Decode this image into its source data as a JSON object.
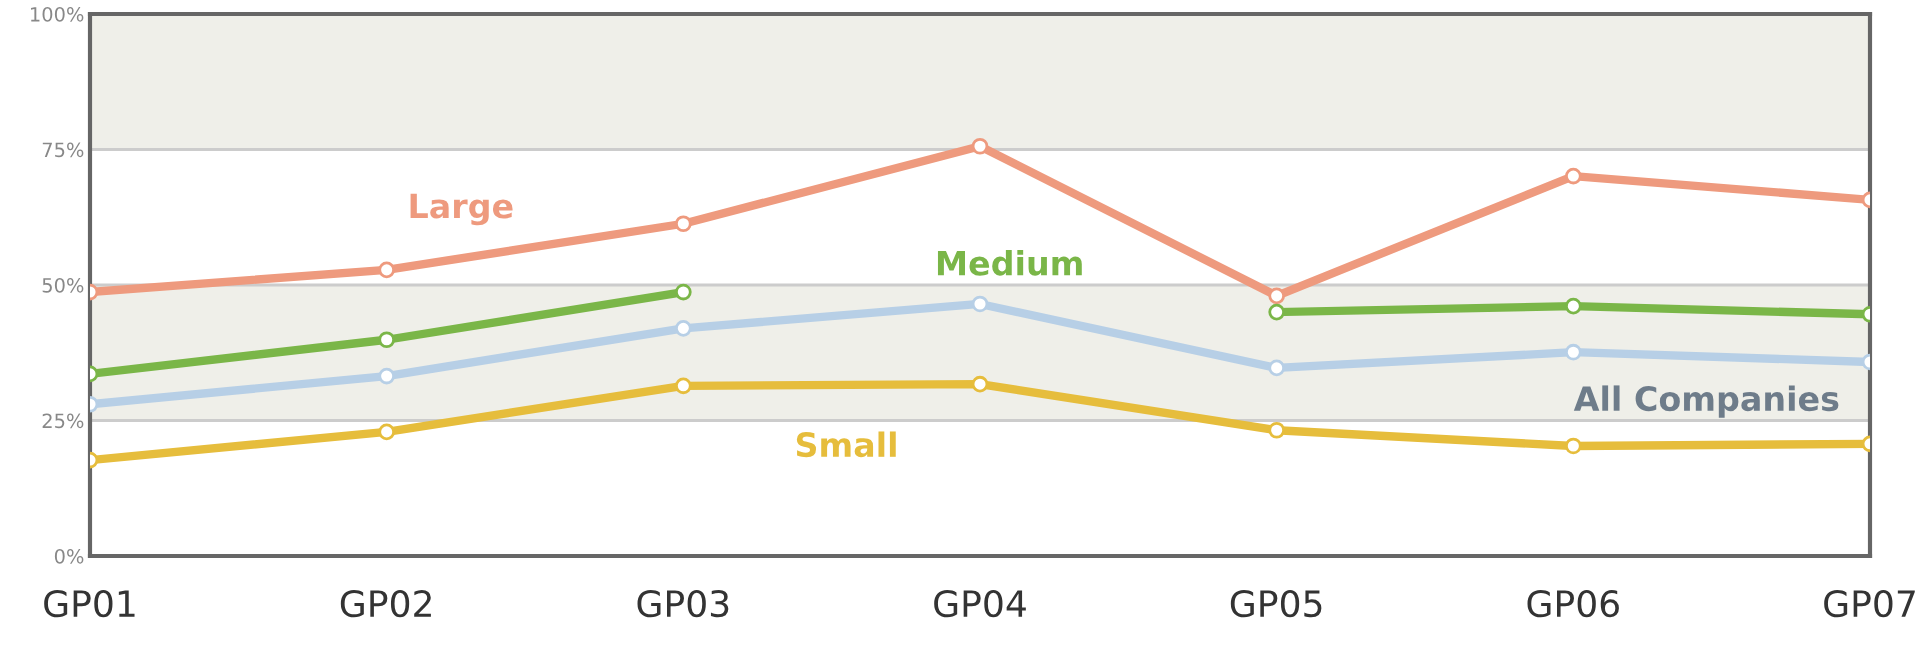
{
  "chart_data": {
    "type": "line",
    "categories": [
      "GP01",
      "GP02",
      "GP03",
      "GP04",
      "GP05",
      "GP06",
      "GP07"
    ],
    "series": [
      {
        "name": "Large",
        "color": "#ee9a7e",
        "values": [
          48.7,
          52.8,
          61.3,
          75.6,
          48,
          70.1,
          65.7
        ]
      },
      {
        "name": "Medium",
        "color": "#7ab648",
        "values": [
          33.6,
          39.9,
          48.7,
          null,
          45,
          46.1,
          44.6
        ]
      },
      {
        "name": "All Companies",
        "color": "#b7cfe6",
        "values": [
          28,
          33.2,
          42,
          46.5,
          34.7,
          37.6,
          35.8
        ]
      },
      {
        "name": "Small",
        "color": "#e6bd3c",
        "values": [
          17.7,
          22.9,
          31.4,
          31.7,
          23.2,
          20.3,
          20.7
        ]
      }
    ],
    "ylim": [
      0,
      100
    ],
    "yticks": [
      {
        "value": 0,
        "label": "0%"
      },
      {
        "value": 25,
        "label": "25%"
      },
      {
        "value": 50,
        "label": "50%"
      },
      {
        "value": 75,
        "label": "75%"
      },
      {
        "value": 100,
        "label": "100%"
      }
    ],
    "grid": "y",
    "marker": "circle",
    "line_style": "solid"
  }
}
